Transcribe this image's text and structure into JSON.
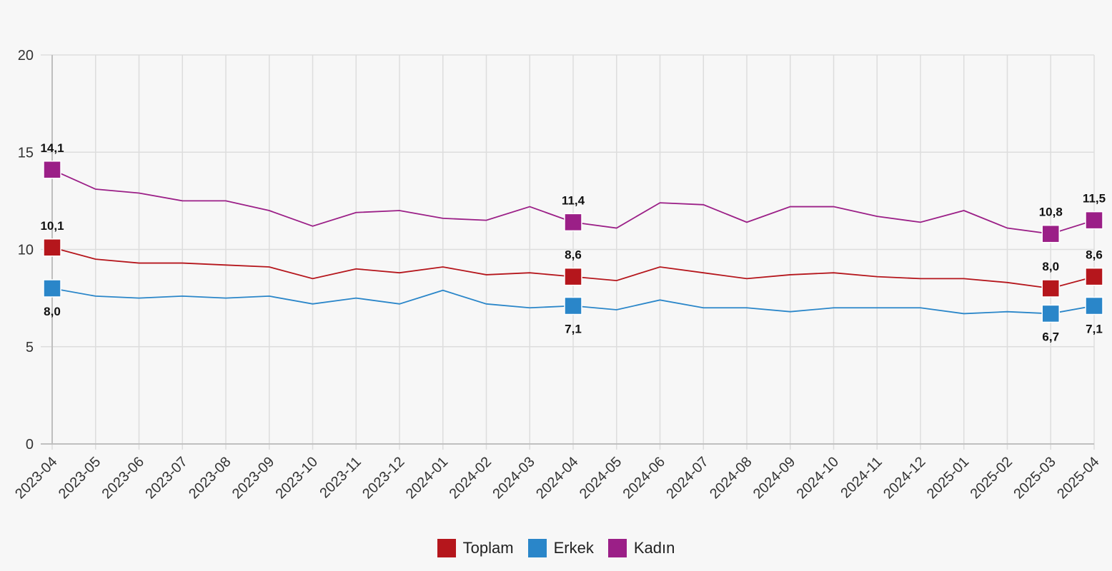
{
  "chart_data": {
    "type": "line",
    "title": "",
    "xlabel": "",
    "ylabel": "",
    "ylim": [
      0,
      20
    ],
    "yticks": [
      0,
      5,
      10,
      15,
      20
    ],
    "grid": true,
    "legend_position": "bottom-center",
    "categories": [
      "2023-04",
      "2023-05",
      "2023-06",
      "2023-07",
      "2023-08",
      "2023-09",
      "2023-10",
      "2023-11",
      "2023-12",
      "2024-01",
      "2024-02",
      "2024-03",
      "2024-04",
      "2024-05",
      "2024-06",
      "2024-07",
      "2024-08",
      "2024-09",
      "2024-10",
      "2024-11",
      "2024-12",
      "2025-01",
      "2025-02",
      "2025-03",
      "2025-04"
    ],
    "series": [
      {
        "name": "Toplam",
        "color": "#b5161c",
        "values": [
          10.1,
          9.5,
          9.3,
          9.3,
          9.2,
          9.1,
          8.5,
          9.0,
          8.8,
          9.1,
          8.7,
          8.8,
          8.6,
          8.4,
          9.1,
          8.8,
          8.5,
          8.7,
          8.8,
          8.6,
          8.5,
          8.5,
          8.3,
          8.0,
          8.6
        ],
        "labels": [
          "10,1",
          "8,6",
          "8,0",
          "8,6"
        ],
        "label_indices": [
          0,
          12,
          23,
          24
        ],
        "label_position": "above"
      },
      {
        "name": "Erkek",
        "color": "#2a86c9",
        "values": [
          8.0,
          7.6,
          7.5,
          7.6,
          7.5,
          7.6,
          7.2,
          7.5,
          7.2,
          7.9,
          7.2,
          7.0,
          7.1,
          6.9,
          7.4,
          7.0,
          7.0,
          6.8,
          7.0,
          7.0,
          7.0,
          6.7,
          6.8,
          6.7,
          7.1
        ],
        "labels": [
          "8,0",
          "7,1",
          "6,7",
          "7,1"
        ],
        "label_indices": [
          0,
          12,
          23,
          24
        ],
        "label_position": "below"
      },
      {
        "name": "Kadın",
        "color": "#9b1f87",
        "values": [
          14.1,
          13.1,
          12.9,
          12.5,
          12.5,
          12.0,
          11.2,
          11.9,
          12.0,
          11.6,
          11.5,
          12.2,
          11.4,
          11.1,
          12.4,
          12.3,
          11.4,
          12.2,
          12.2,
          11.7,
          11.4,
          12.0,
          11.1,
          10.8,
          11.5
        ],
        "labels": [
          "14,1",
          "11,4",
          "10,8",
          "11,5"
        ],
        "label_indices": [
          0,
          12,
          23,
          24
        ],
        "label_position": "above"
      }
    ]
  }
}
